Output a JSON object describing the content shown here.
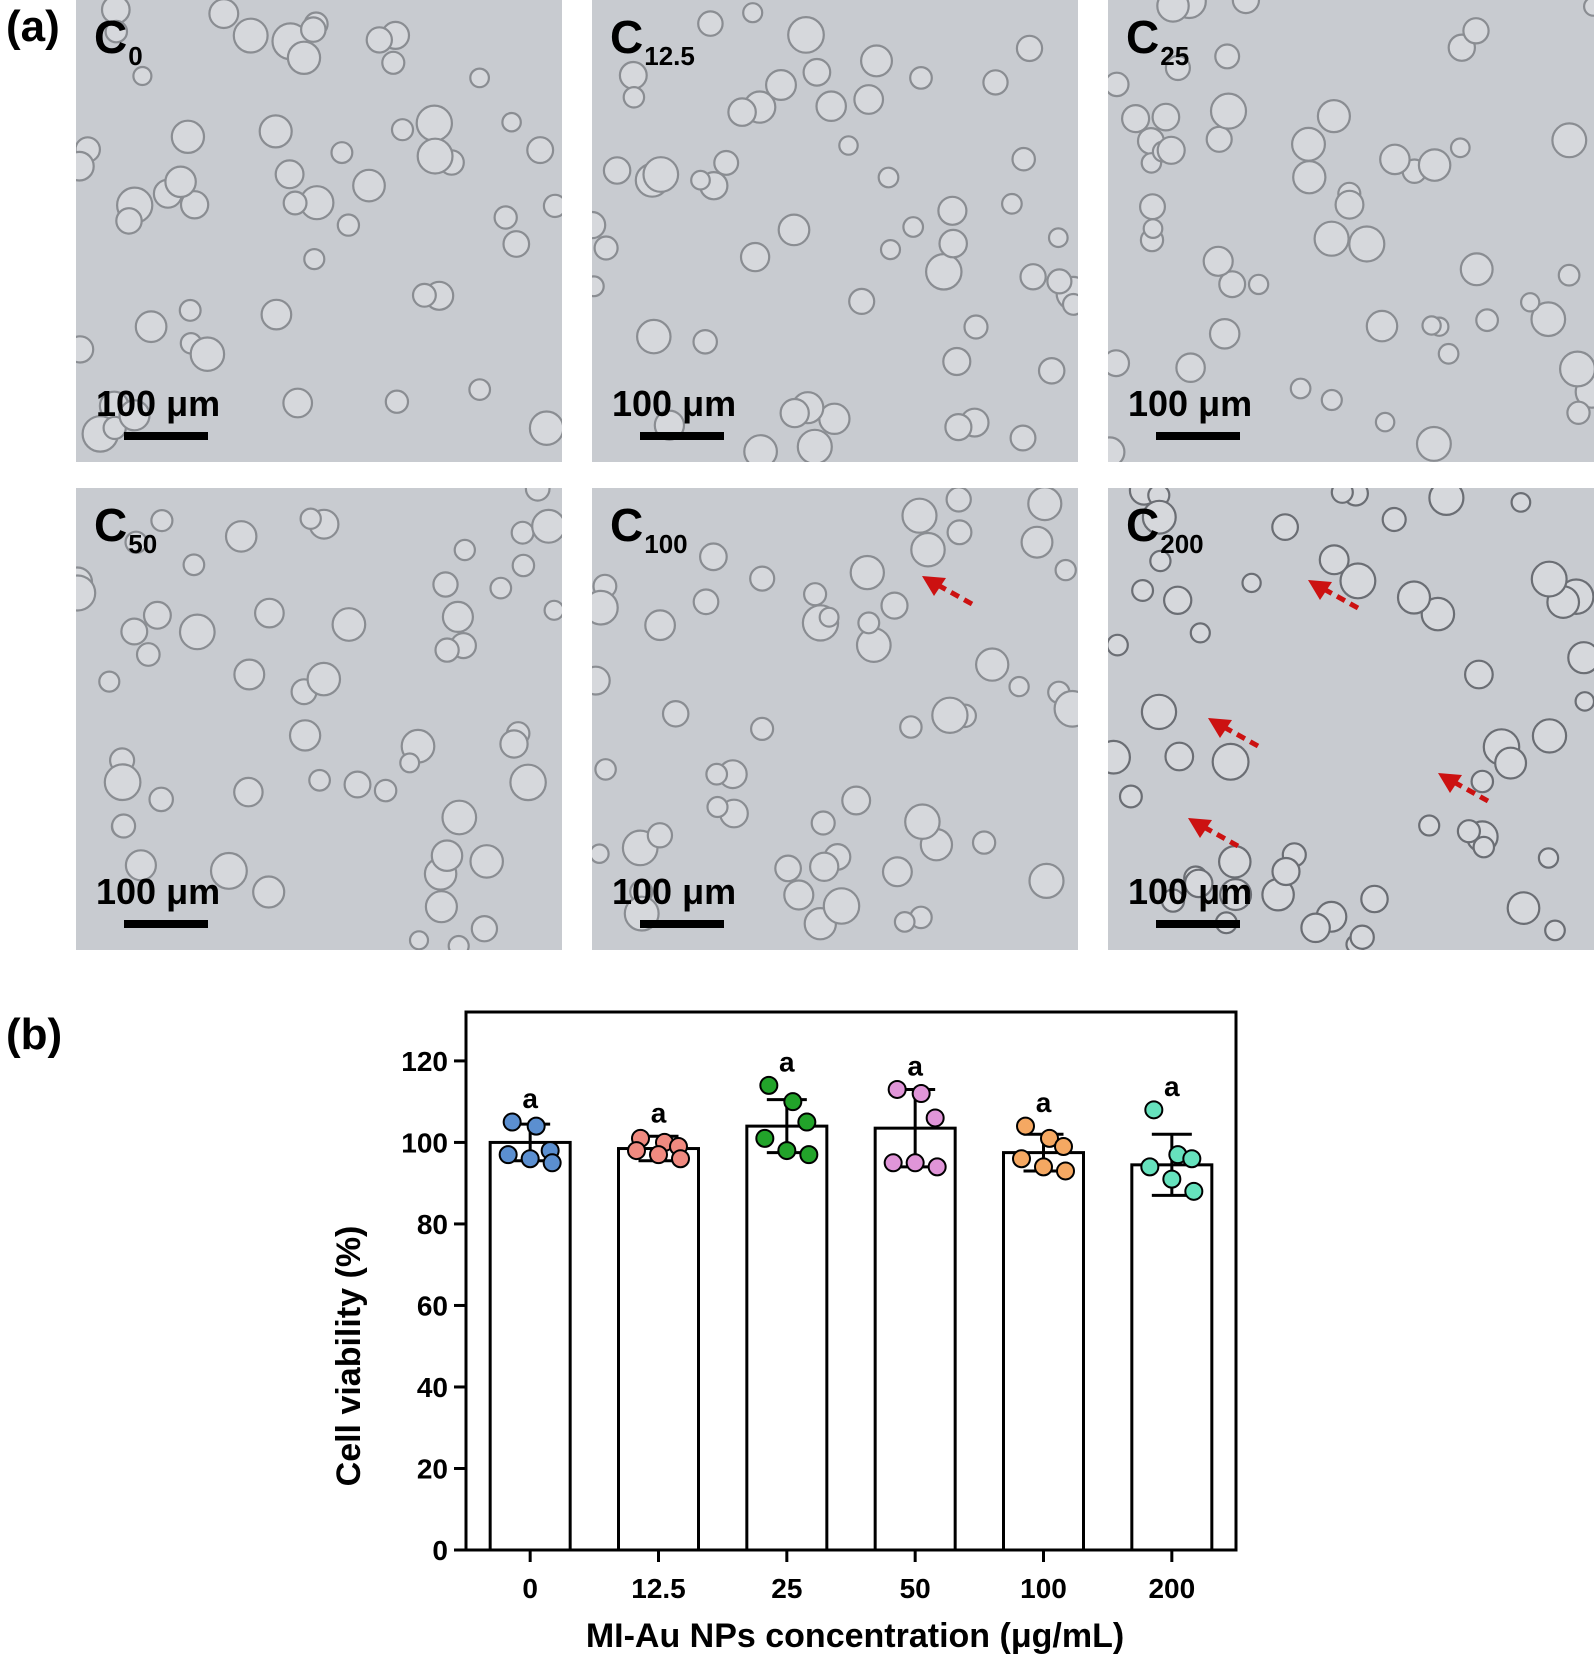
{
  "panel_a": {
    "label": "(a)",
    "images": [
      {
        "name": "C",
        "sub": "0",
        "scale_text": "100 μm",
        "arrows": 0
      },
      {
        "name": "C",
        "sub": "12.5",
        "scale_text": "100 μm",
        "arrows": 0
      },
      {
        "name": "C",
        "sub": "25",
        "scale_text": "100 μm",
        "arrows": 0
      },
      {
        "name": "C",
        "sub": "50",
        "scale_text": "100 μm",
        "arrows": 0
      },
      {
        "name": "C",
        "sub": "100",
        "scale_text": "100 μm",
        "arrows": 1
      },
      {
        "name": "C",
        "sub": "200",
        "scale_text": "100 μm",
        "arrows": 4
      }
    ],
    "arrow_color": "#cc1111"
  },
  "panel_b": {
    "label": "(b)"
  },
  "chart_data": {
    "type": "bar",
    "categories": [
      "0",
      "12.5",
      "25",
      "50",
      "100",
      "200"
    ],
    "values": [
      100,
      98.5,
      104,
      103.5,
      97.5,
      94.5
    ],
    "error": [
      4.5,
      3,
      6.5,
      9.5,
      4.5,
      7.5
    ],
    "significance": [
      "a",
      "a",
      "a",
      "a",
      "a",
      "a"
    ],
    "points": [
      [
        105,
        104,
        98,
        97,
        96,
        95
      ],
      [
        101,
        100,
        99,
        98,
        97,
        96
      ],
      [
        114,
        110,
        105,
        101,
        98,
        97
      ],
      [
        113,
        112,
        106,
        95,
        95,
        94
      ],
      [
        104,
        101,
        99,
        96,
        94,
        93
      ],
      [
        108,
        97,
        96,
        94,
        91,
        88
      ]
    ],
    "point_colors": [
      "#5b8fd0",
      "#f08a80",
      "#22a32a",
      "#e095d8",
      "#f5a862",
      "#66e2bd"
    ],
    "xlabel": "MI-Au NPs concentration (μg/mL)",
    "ylabel": "Cell viability (%)",
    "ylim": [
      0,
      132
    ],
    "yticks": [
      0,
      20,
      40,
      60,
      80,
      100,
      120
    ],
    "grid": false
  }
}
